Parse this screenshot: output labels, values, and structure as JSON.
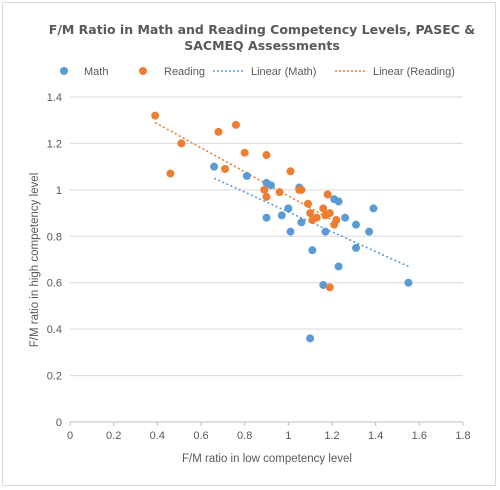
{
  "chart_data": {
    "type": "scatter",
    "title": [
      "F/M Ratio in Math and Reading Competency Levels, PASEC &",
      "SACMEQ Assessments"
    ],
    "xlabel": "F/M ratio in low competency  level",
    "ylabel": "F/M ratio in high competency  level",
    "xlim": [
      0,
      1.8
    ],
    "ylim": [
      0,
      1.4
    ],
    "x_ticks": [
      "0",
      "0.2",
      "0.4",
      "0.6",
      "0.8",
      "1",
      "1.2",
      "1.4",
      "1.6",
      "1.8"
    ],
    "y_ticks": [
      "0",
      "0.2",
      "0.4",
      "0.6",
      "0.8",
      "1",
      "1.2",
      "1.4"
    ],
    "grid": "horizontal",
    "legend_position": "top",
    "legend": [
      "Math",
      "Reading",
      "Linear (Math)",
      "Linear (Reading)"
    ],
    "series": [
      {
        "name": "Math",
        "color": "#5b9bd5",
        "points": [
          [
            0.66,
            1.1
          ],
          [
            0.81,
            1.06
          ],
          [
            0.9,
            1.03
          ],
          [
            0.92,
            1.02
          ],
          [
            0.9,
            0.88
          ],
          [
            0.97,
            0.89
          ],
          [
            1.0,
            0.92
          ],
          [
            1.01,
            0.82
          ],
          [
            1.05,
            1.01
          ],
          [
            1.06,
            0.86
          ],
          [
            1.11,
            0.74
          ],
          [
            1.16,
            0.59
          ],
          [
            1.17,
            0.82
          ],
          [
            1.21,
            0.96
          ],
          [
            1.23,
            0.95
          ],
          [
            1.26,
            0.88
          ],
          [
            1.31,
            0.85
          ],
          [
            1.31,
            0.75
          ],
          [
            1.37,
            0.82
          ],
          [
            1.39,
            0.92
          ],
          [
            1.23,
            0.67
          ],
          [
            1.1,
            0.36
          ],
          [
            1.55,
            0.6
          ]
        ]
      },
      {
        "name": "Reading",
        "color": "#ed7d31",
        "points": [
          [
            0.39,
            1.32
          ],
          [
            0.46,
            1.07
          ],
          [
            0.51,
            1.2
          ],
          [
            0.68,
            1.25
          ],
          [
            0.71,
            1.09
          ],
          [
            0.76,
            1.28
          ],
          [
            0.8,
            1.16
          ],
          [
            0.89,
            1.0
          ],
          [
            0.9,
            0.97
          ],
          [
            0.9,
            1.15
          ],
          [
            0.96,
            0.99
          ],
          [
            1.01,
            1.08
          ],
          [
            1.05,
            1.0
          ],
          [
            1.06,
            1.0
          ],
          [
            1.09,
            0.94
          ],
          [
            1.1,
            0.9
          ],
          [
            1.11,
            0.87
          ],
          [
            1.13,
            0.88
          ],
          [
            1.16,
            0.92
          ],
          [
            1.17,
            0.89
          ],
          [
            1.18,
            0.98
          ],
          [
            1.19,
            0.9
          ],
          [
            1.19,
            0.58
          ],
          [
            1.21,
            0.85
          ],
          [
            1.22,
            0.87
          ]
        ]
      }
    ],
    "trendlines": [
      {
        "name": "Linear (Math)",
        "color": "#5b9bd5",
        "x": [
          0.66,
          1.55
        ],
        "y": [
          1.05,
          0.67
        ]
      },
      {
        "name": "Linear (Reading)",
        "color": "#ed7d31",
        "x": [
          0.39,
          1.22
        ],
        "y": [
          1.29,
          0.86
        ]
      }
    ]
  }
}
